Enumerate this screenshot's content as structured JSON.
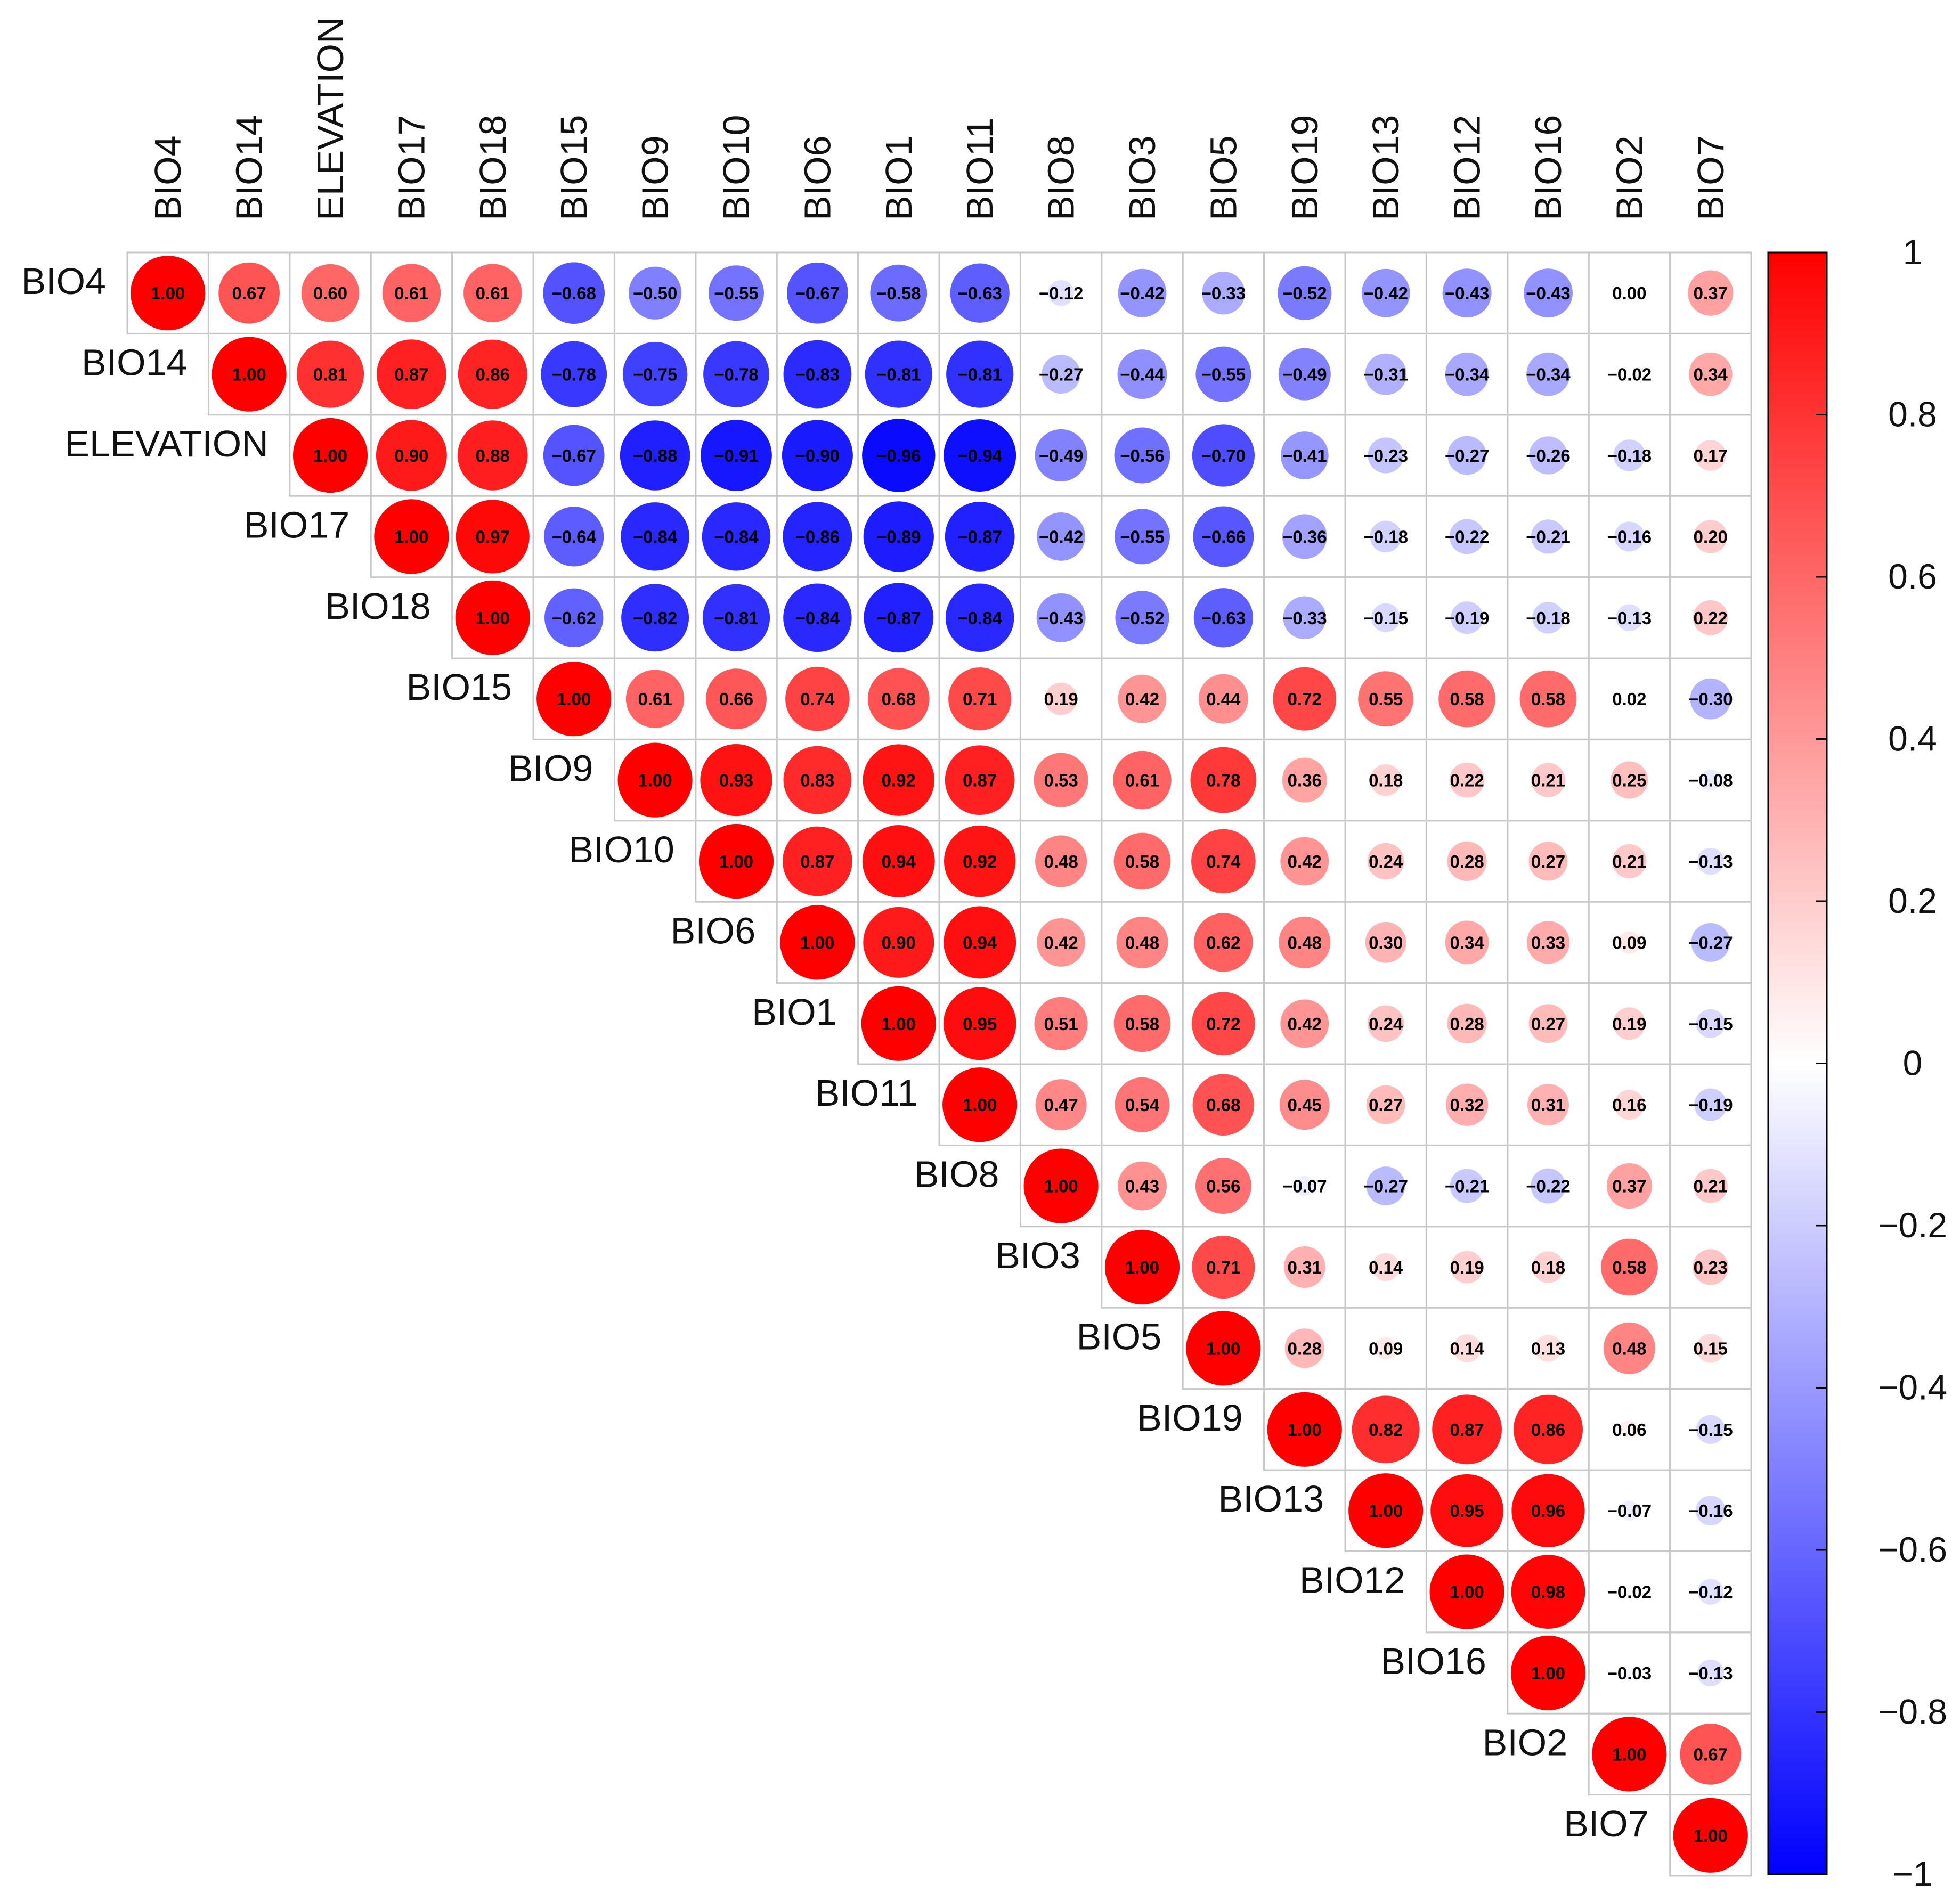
{
  "chart_data": {
    "type": "heatmap",
    "variant": "correlation-upper-triangle-circles",
    "title": "",
    "xlabel": "",
    "ylabel": "",
    "variables": [
      "BIO4",
      "BIO14",
      "ELEVATION",
      "BIO17",
      "BIO18",
      "BIO15",
      "BIO9",
      "BIO10",
      "BIO6",
      "BIO1",
      "BIO11",
      "BIO8",
      "BIO3",
      "BIO5",
      "BIO19",
      "BIO13",
      "BIO12",
      "BIO16",
      "BIO2",
      "BIO7"
    ],
    "rows": [
      [
        1.0,
        0.67,
        0.6,
        0.61,
        0.61,
        -0.68,
        -0.5,
        -0.55,
        -0.67,
        -0.58,
        -0.63,
        -0.12,
        -0.42,
        -0.33,
        -0.52,
        -0.42,
        -0.43,
        -0.43,
        0.0,
        0.37
      ],
      [
        1.0,
        0.81,
        0.87,
        0.86,
        -0.78,
        -0.75,
        -0.78,
        -0.83,
        -0.81,
        -0.81,
        -0.27,
        -0.44,
        -0.55,
        -0.49,
        -0.31,
        -0.34,
        -0.34,
        -0.02,
        0.34
      ],
      [
        1.0,
        0.9,
        0.88,
        -0.67,
        -0.88,
        -0.91,
        -0.9,
        -0.96,
        -0.94,
        -0.49,
        -0.56,
        -0.7,
        -0.41,
        -0.23,
        -0.27,
        -0.26,
        -0.18,
        0.17
      ],
      [
        1.0,
        0.97,
        -0.64,
        -0.84,
        -0.84,
        -0.86,
        -0.89,
        -0.87,
        -0.42,
        -0.55,
        -0.66,
        -0.36,
        -0.18,
        -0.22,
        -0.21,
        -0.16,
        0.2
      ],
      [
        1.0,
        -0.62,
        -0.82,
        -0.81,
        -0.84,
        -0.87,
        -0.84,
        -0.43,
        -0.52,
        -0.63,
        -0.33,
        -0.15,
        -0.19,
        -0.18,
        -0.13,
        0.22
      ],
      [
        1.0,
        0.61,
        0.66,
        0.74,
        0.68,
        0.71,
        0.19,
        0.42,
        0.44,
        0.72,
        0.55,
        0.58,
        0.58,
        0.02,
        -0.3
      ],
      [
        1.0,
        0.93,
        0.83,
        0.92,
        0.87,
        0.53,
        0.61,
        0.78,
        0.36,
        0.18,
        0.22,
        0.21,
        0.25,
        -0.08
      ],
      [
        1.0,
        0.87,
        0.94,
        0.92,
        0.48,
        0.58,
        0.74,
        0.42,
        0.24,
        0.28,
        0.27,
        0.21,
        -0.13
      ],
      [
        1.0,
        0.9,
        0.94,
        0.42,
        0.48,
        0.62,
        0.48,
        0.3,
        0.34,
        0.33,
        0.09,
        -0.27
      ],
      [
        1.0,
        0.95,
        0.51,
        0.58,
        0.72,
        0.42,
        0.24,
        0.28,
        0.27,
        0.19,
        -0.15
      ],
      [
        1.0,
        0.47,
        0.54,
        0.68,
        0.45,
        0.27,
        0.32,
        0.31,
        0.16,
        -0.19
      ],
      [
        1.0,
        0.43,
        0.56,
        -0.07,
        -0.27,
        -0.21,
        -0.22,
        0.37,
        0.21
      ],
      [
        1.0,
        0.71,
        0.31,
        0.14,
        0.19,
        0.18,
        0.58,
        0.23
      ],
      [
        1.0,
        0.28,
        0.09,
        0.14,
        0.13,
        0.48,
        0.15
      ],
      [
        1.0,
        0.82,
        0.87,
        0.86,
        0.06,
        -0.15
      ],
      [
        1.0,
        0.95,
        0.96,
        -0.07,
        -0.16
      ],
      [
        1.0,
        0.98,
        -0.02,
        -0.12
      ],
      [
        1.0,
        -0.03,
        -0.13
      ],
      [
        1.0,
        0.67
      ],
      [
        1.0
      ]
    ],
    "color_scale": {
      "min": -1,
      "max": 1,
      "low": "#0000ff",
      "mid": "#ffffff",
      "high": "#ff0000"
    },
    "legend": {
      "position": "right",
      "ticks": [
        1,
        0.8,
        0.6,
        0.4,
        0.2,
        0,
        -0.2,
        -0.4,
        -0.6,
        -0.8,
        -1
      ],
      "tick_labels": [
        "1",
        "0.8",
        "0.6",
        "0.4",
        "0.2",
        "0",
        "−0.2",
        "−0.4",
        "−0.6",
        "−0.8",
        "−1"
      ]
    },
    "grid": true
  }
}
